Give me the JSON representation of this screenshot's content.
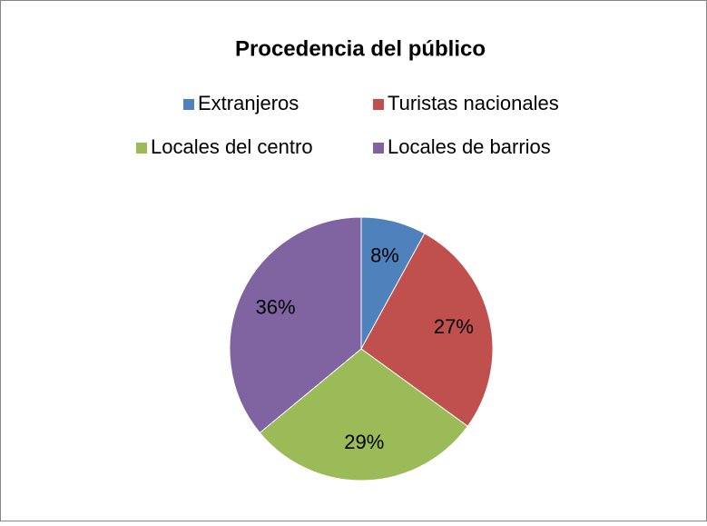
{
  "chart_data": {
    "type": "pie",
    "title": "Procedencia del público",
    "categories": [
      "Extranjeros",
      "Turistas nacionales",
      "Locales del centro",
      "Locales de barrios"
    ],
    "values": [
      8,
      27,
      29,
      36
    ],
    "value_labels": [
      "8%",
      "27%",
      "29%",
      "36%"
    ],
    "colors": [
      "#4f81bd",
      "#c0504d",
      "#9bbb59",
      "#8064a2"
    ],
    "legend": "top"
  }
}
